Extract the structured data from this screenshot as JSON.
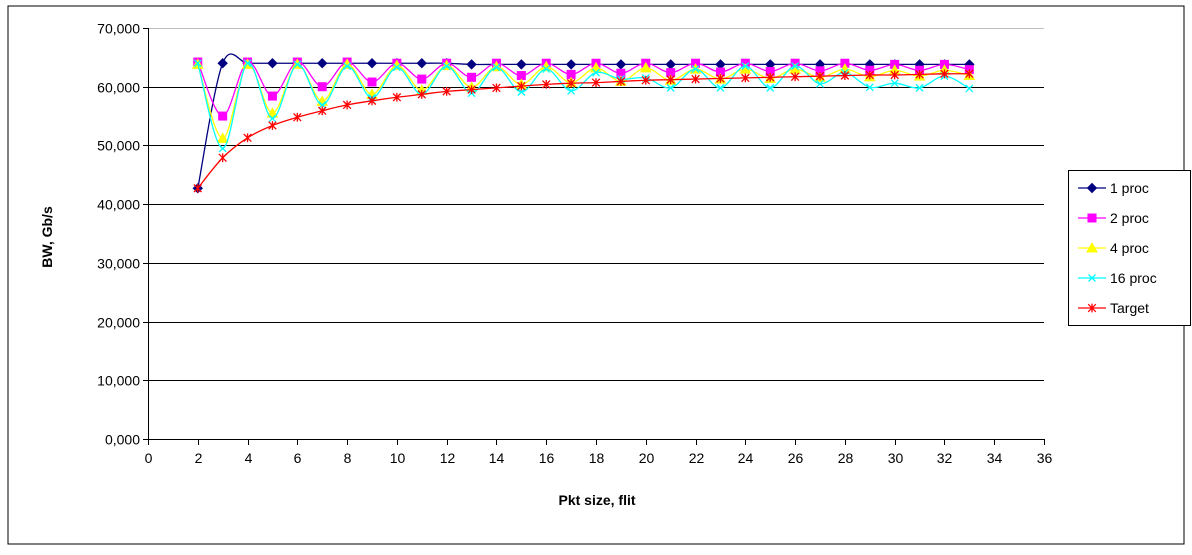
{
  "chart_data": {
    "type": "line",
    "title": "",
    "xlabel": "Pkt size, flit",
    "ylabel": "BW, Gb/s",
    "xlim": [
      0,
      36
    ],
    "ylim": [
      0,
      70000
    ],
    "xticks": [
      0,
      2,
      4,
      6,
      8,
      10,
      12,
      14,
      16,
      18,
      20,
      22,
      24,
      26,
      28,
      30,
      32,
      34,
      36
    ],
    "xtick_labels": [
      "0",
      "2",
      "4",
      "6",
      "8",
      "10",
      "12",
      "14",
      "16",
      "18",
      "20",
      "22",
      "24",
      "26",
      "28",
      "30",
      "32",
      "34",
      "36"
    ],
    "yticks": [
      0,
      10000,
      20000,
      30000,
      40000,
      50000,
      60000,
      70000
    ],
    "ytick_labels": [
      "0,000",
      "10,000",
      "20,000",
      "30,000",
      "40,000",
      "50,000",
      "60,000",
      "70,000"
    ],
    "grid": "horizontal",
    "legend_position": "right",
    "x": [
      2,
      3,
      4,
      5,
      6,
      7,
      8,
      9,
      10,
      11,
      12,
      13,
      14,
      15,
      16,
      17,
      18,
      19,
      20,
      21,
      22,
      23,
      24,
      25,
      26,
      27,
      28,
      29,
      30,
      31,
      32,
      33
    ],
    "series": [
      {
        "name": "1 proc",
        "color": "#000080",
        "marker": "diamond",
        "values": [
          42700,
          64000,
          64000,
          64000,
          64000,
          64000,
          64000,
          64000,
          64000,
          64000,
          64000,
          63800,
          63800,
          63800,
          63800,
          63800,
          63800,
          63800,
          63800,
          63800,
          63800,
          63800,
          63800,
          63800,
          63800,
          63800,
          63800,
          63800,
          63800,
          63800,
          63800,
          63800
        ]
      },
      {
        "name": "2 proc",
        "color": "#FF00FF",
        "marker": "square",
        "values": [
          64200,
          55000,
          64200,
          58400,
          64200,
          60000,
          64200,
          60800,
          64000,
          61300,
          64000,
          61600,
          64000,
          61900,
          64000,
          62100,
          64000,
          62300,
          64000,
          62400,
          64000,
          62500,
          64000,
          62600,
          64000,
          62700,
          64000,
          62800,
          63800,
          62800,
          63800,
          62900
        ]
      },
      {
        "name": "4 proc",
        "color": "#FFFF00",
        "marker": "triangle",
        "values": [
          63800,
          51200,
          63800,
          55500,
          63800,
          57500,
          63800,
          58700,
          63600,
          59400,
          63600,
          59900,
          63400,
          60400,
          63400,
          60700,
          63200,
          60900,
          63200,
          61100,
          63000,
          61300,
          63000,
          61400,
          63000,
          61600,
          63000,
          61700,
          62800,
          61800,
          62800,
          61900
        ]
      },
      {
        "name": "16 proc",
        "color": "#00FFFF",
        "marker": "x",
        "values": [
          64000,
          49500,
          64000,
          54600,
          63800,
          56900,
          63500,
          58100,
          63300,
          58700,
          63500,
          58900,
          63300,
          59100,
          63000,
          59300,
          62400,
          61300,
          61500,
          59800,
          63000,
          59800,
          63500,
          59800,
          63500,
          60500,
          62400,
          59900,
          60600,
          59800,
          61800,
          59700
        ]
      },
      {
        "name": "Target",
        "color": "#FF0000",
        "marker": "star",
        "values": [
          42700,
          47900,
          51300,
          53400,
          54800,
          55900,
          56900,
          57600,
          58200,
          58700,
          59200,
          59500,
          59800,
          60100,
          60400,
          60600,
          60700,
          60900,
          61100,
          61200,
          61300,
          61400,
          61500,
          61600,
          61700,
          61800,
          61900,
          62000,
          62000,
          62100,
          62200,
          62200
        ]
      }
    ]
  }
}
